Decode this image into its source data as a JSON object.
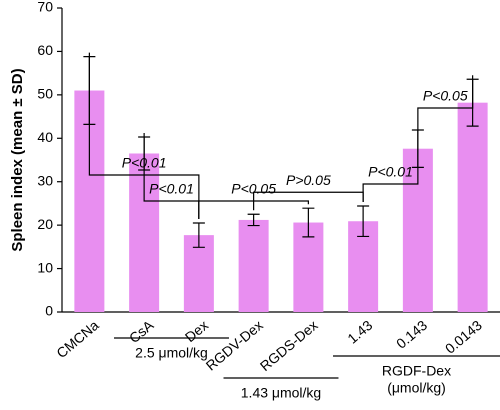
{
  "chart_data": {
    "type": "bar",
    "y_label": "Spleen index (mean ± SD)",
    "categories": [
      "CMCNa",
      "CsA",
      "Dex",
      "RGDV-Dex",
      "RGDS-Dex",
      "1.43",
      "0.143",
      "0.0143"
    ],
    "values": [
      51,
      36.5,
      17.7,
      21.2,
      20.6,
      20.9,
      37.6,
      48.2
    ],
    "errors": [
      7.8,
      3.8,
      2.8,
      1.3,
      3.3,
      3.5,
      4.3,
      5.4
    ],
    "color": "#e88ef0",
    "ylim": [
      0,
      70
    ],
    "yticks": [
      0,
      10,
      20,
      30,
      40,
      50,
      60,
      70
    ],
    "significance": [
      {
        "between": [
          "CsA",
          "Dex"
        ],
        "label": "P<0.01"
      },
      {
        "between": [
          "RGDV-Dex",
          "1.43"
        ],
        "label": "P>0.05"
      },
      {
        "between": [
          "Dex",
          "RGDS-Dex"
        ],
        "label": "P<0.05"
      },
      {
        "between": [
          "CMCNa",
          "Dex"
        ],
        "label": "P<0.01"
      },
      {
        "between": [
          "1.43",
          "0.143"
        ],
        "label": "P<0.01"
      },
      {
        "between": [
          "0.143",
          "0.0143"
        ],
        "label": "P<0.05"
      }
    ],
    "groups": [
      {
        "members": [
          "CsA",
          "Dex"
        ],
        "label": [
          "2.5 μmol/kg"
        ]
      },
      {
        "members": [
          "RGDV-Dex",
          "RGDS-Dex"
        ],
        "label": [
          "1.43 μmol/kg"
        ]
      },
      {
        "members": [
          "1.43",
          "0.143",
          "0.0143"
        ],
        "label": [
          "RGDF-Dex",
          "(μmol/kg)"
        ]
      }
    ]
  }
}
